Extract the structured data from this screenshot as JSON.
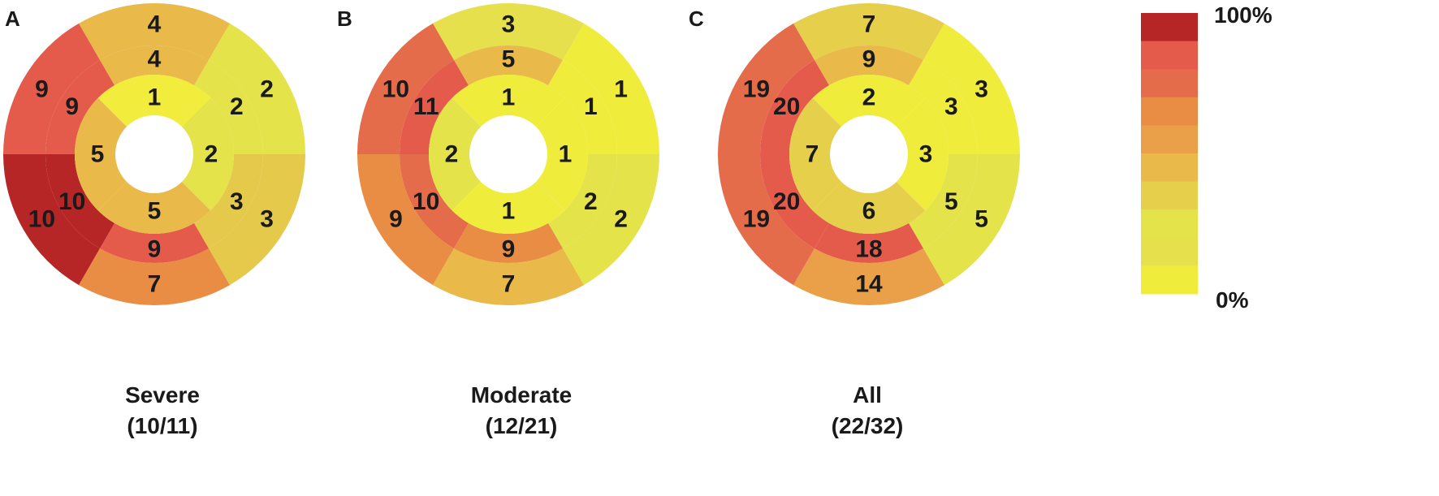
{
  "panels": [
    {
      "letter": "A",
      "caption": "Severe",
      "fraction": "(10/11)",
      "basal": [
        4,
        2,
        3,
        7,
        10,
        9
      ],
      "mid": [
        4,
        2,
        3,
        9,
        10,
        9
      ],
      "apical": [
        1,
        2,
        5,
        5
      ],
      "basal_colors": [
        "#e9b949",
        "#e4e34a",
        "#e5c94b",
        "#e98d45",
        "#b62626",
        "#e45b4c"
      ],
      "mid_colors": [
        "#e9b949",
        "#e4e34a",
        "#e5c94b",
        "#e45b4c",
        "#b62626",
        "#e45b4c"
      ],
      "apical_colors": [
        "#f2ed3c",
        "#e4e34a",
        "#e9b949",
        "#e9b949"
      ]
    },
    {
      "letter": "B",
      "caption": "Moderate",
      "fraction": "(12/21)",
      "basal": [
        3,
        1,
        2,
        7,
        9,
        10
      ],
      "mid": [
        5,
        1,
        2,
        9,
        10,
        11
      ],
      "apical": [
        1,
        1,
        1,
        2
      ],
      "basal_colors": [
        "#e6e04c",
        "#f0ec3c",
        "#e4e34a",
        "#e9b949",
        "#e98d45",
        "#e46c4a"
      ],
      "mid_colors": [
        "#e9b949",
        "#f0ec3c",
        "#e4e34a",
        "#e98d45",
        "#e46c4a",
        "#e45b4c"
      ],
      "apical_colors": [
        "#f0ec3c",
        "#f0ec3c",
        "#f0ec3c",
        "#e4e34a"
      ]
    },
    {
      "letter": "C",
      "caption": "All",
      "fraction": "(22/32)",
      "basal": [
        7,
        3,
        5,
        14,
        19,
        19
      ],
      "mid": [
        9,
        3,
        5,
        18,
        20,
        20
      ],
      "apical": [
        2,
        3,
        6,
        7
      ],
      "basal_colors": [
        "#e6cf4b",
        "#f0ec3c",
        "#e4e34a",
        "#e9a048",
        "#e46c4a",
        "#e46c4a"
      ],
      "mid_colors": [
        "#e9b949",
        "#f0ec3c",
        "#e4e34a",
        "#e45b4c",
        "#e45b4c",
        "#e45b4c"
      ],
      "apical_colors": [
        "#f0ec3c",
        "#f0ec3c",
        "#e6cf4b",
        "#e6cf4b"
      ]
    }
  ],
  "color_scale": {
    "max_label": "100%",
    "min_label": "0%",
    "colors": [
      "#b62626",
      "#e45b4c",
      "#e46c4a",
      "#e98d45",
      "#e9a048",
      "#e9b949",
      "#e6cf4b",
      "#e4e34a",
      "#e6e04c",
      "#f0ec3c"
    ]
  }
}
